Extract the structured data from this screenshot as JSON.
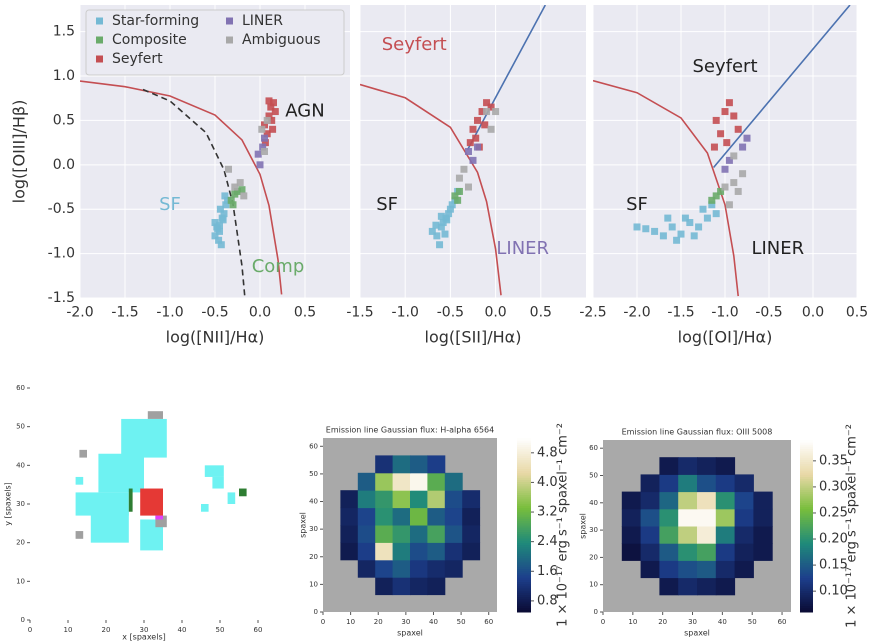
{
  "chart_data": [
    {
      "type": "scatter",
      "xlabel": "log([NII]/Hα)",
      "ylabel": "log([OIII]/Hβ)",
      "xlim": [
        -2.0,
        1.0
      ],
      "ylim": [
        -1.5,
        1.8
      ],
      "grid": true,
      "ytick_labels": true,
      "legend": "upper left",
      "legend_columns": 2,
      "xticks": [
        {
          "value": -2,
          "label": "-2.0"
        },
        -1.5,
        {
          "value": -1,
          "label": "-1.0"
        },
        -0.5,
        {
          "value": 0,
          "label": "0.0"
        },
        0.5
      ],
      "yticks": [
        -1.5,
        {
          "value": -1,
          "label": "-1.0"
        },
        -0.5,
        {
          "value": 0,
          "label": "0.0"
        },
        0.5,
        {
          "value": 1,
          "label": "1.0"
        },
        1.5
      ],
      "lines": [
        {
          "color": "#c44e52",
          "style": "solid",
          "x": [
            -2.0,
            -1.5,
            -1.0,
            -0.5,
            -0.2,
            0.0,
            0.1,
            0.2,
            0.24
          ],
          "y": [
            0.943,
            0.88,
            0.775,
            0.561,
            0.28,
            -0.108,
            -0.459,
            -1.069,
            -1.46
          ]
        },
        {
          "color": "#333333",
          "style": "dashed",
          "x": [
            -1.3,
            -1.0,
            -0.6,
            -0.4,
            -0.3,
            -0.2,
            -0.17
          ],
          "y": [
            0.848,
            0.719,
            0.362,
            -0.056,
            -0.443,
            -1.14,
            -1.473
          ]
        }
      ],
      "series": [
        {
          "name": "Star-forming",
          "color": "#74b9d4",
          "x": [
            -0.5,
            -0.48,
            -0.45,
            -0.42,
            -0.4,
            -0.46,
            -0.5,
            -0.43,
            -0.38,
            -0.44,
            -0.47,
            -0.41,
            -0.39,
            -0.36,
            -0.45
          ],
          "y": [
            -0.8,
            -0.7,
            -0.75,
            -0.6,
            -0.55,
            -0.85,
            -0.65,
            -0.9,
            -0.45,
            -0.5,
            -0.72,
            -0.62,
            -0.35,
            -0.4,
            -0.68
          ]
        },
        {
          "name": "Composite",
          "color": "#6aab6a",
          "x": [
            -0.32,
            -0.28,
            -0.25,
            -0.2,
            -0.3
          ],
          "y": [
            -0.4,
            -0.33,
            -0.3,
            -0.28,
            -0.45
          ]
        },
        {
          "name": "Seyfert",
          "color": "#c44e52",
          "x": [
            0.05,
            0.1,
            0.12,
            0.15,
            0.08,
            0.13,
            0.17,
            0.1,
            0.06,
            0.14
          ],
          "y": [
            0.45,
            0.55,
            0.65,
            0.7,
            0.35,
            0.5,
            0.6,
            0.72,
            0.25,
            0.4
          ]
        },
        {
          "name": "LINER",
          "color": "#8172b2",
          "x": [
            0.0,
            -0.02,
            0.03,
            0.05
          ],
          "y": [
            0.0,
            0.12,
            0.2,
            0.3
          ]
        },
        {
          "name": "Ambiguous",
          "color": "#a8a8a8",
          "x": [
            -0.35,
            -0.22,
            -0.18,
            0.02,
            0.08,
            -0.28,
            0.05
          ],
          "y": [
            -0.05,
            -0.2,
            -0.35,
            0.4,
            0.5,
            -0.25,
            0.15
          ]
        }
      ],
      "annotations": [
        {
          "text": "AGN",
          "x": 0.5,
          "y": 0.6,
          "color": "#222222"
        },
        {
          "text": "SF",
          "x": -1.0,
          "y": -0.45,
          "color": "#74b9d4"
        },
        {
          "text": "Comp",
          "x": 0.2,
          "y": -1.15,
          "color": "#6aab6a"
        }
      ]
    },
    {
      "type": "scatter",
      "xlabel": "log([SII]/Hα)",
      "xlim": [
        -1.5,
        1.0
      ],
      "ylim": [
        -1.5,
        1.8
      ],
      "grid": true,
      "ytick_labels": false,
      "xticks": [
        -1.5,
        {
          "value": -1,
          "label": "-1.0"
        },
        -0.5,
        {
          "value": 0,
          "label": "0.0"
        },
        0.5
      ],
      "yticks": [
        -1.5,
        -1,
        -0.5,
        0,
        0.5,
        1,
        1.5
      ],
      "lines": [
        {
          "color": "#c44e52",
          "style": "solid",
          "x": [
            -1.5,
            -1.0,
            -0.5,
            -0.2,
            -0.1,
            0.0,
            0.06
          ],
          "y": [
            0.904,
            0.755,
            0.422,
            -0.085,
            -0.414,
            -0.95,
            -1.469
          ]
        },
        {
          "color": "#4c72b0",
          "style": "solid",
          "x": [
            -0.31,
            0.55
          ],
          "y": [
            0.17,
            1.8
          ]
        }
      ],
      "series": [
        {
          "name": "Star-forming",
          "color": "#74b9d4",
          "x": [
            -0.65,
            -0.6,
            -0.55,
            -0.7,
            -0.5,
            -0.62,
            -0.58,
            -0.52,
            -0.45,
            -0.66,
            -0.56,
            -0.48,
            -0.6,
            -0.42,
            -0.54
          ],
          "y": [
            -0.8,
            -0.7,
            -0.6,
            -0.75,
            -0.5,
            -0.9,
            -0.65,
            -0.55,
            -0.4,
            -0.68,
            -0.78,
            -0.45,
            -0.58,
            -0.3,
            -0.62
          ]
        },
        {
          "name": "Composite",
          "color": "#6aab6a",
          "x": [
            -0.45,
            -0.4,
            -0.42
          ],
          "y": [
            -0.35,
            -0.3,
            -0.4
          ]
        },
        {
          "name": "Seyfert",
          "color": "#c44e52",
          "x": [
            -0.25,
            -0.2,
            -0.15,
            -0.1,
            -0.22,
            -0.12,
            -0.05,
            -0.18,
            -0.28
          ],
          "y": [
            0.4,
            0.5,
            0.6,
            0.7,
            0.3,
            0.45,
            0.65,
            0.2,
            0.25
          ]
        },
        {
          "name": "LINER",
          "color": "#8172b2",
          "x": [
            -0.3,
            -0.25,
            -0.2
          ],
          "y": [
            0.15,
            0.05,
            0.2
          ]
        },
        {
          "name": "Ambiguous",
          "color": "#a8a8a8",
          "x": [
            -0.35,
            -0.1,
            0.0,
            -0.05,
            -0.4,
            -0.3
          ],
          "y": [
            -0.05,
            0.6,
            0.6,
            0.4,
            -0.15,
            -0.25
          ]
        }
      ],
      "annotations": [
        {
          "text": "Seyfert",
          "x": -0.9,
          "y": 1.35,
          "color": "#c44e52"
        },
        {
          "text": "SF",
          "x": -1.2,
          "y": -0.45,
          "color": "#222222"
        },
        {
          "text": "LINER",
          "x": 0.3,
          "y": -0.95,
          "color": "#8172b2"
        }
      ]
    },
    {
      "type": "scatter",
      "xlabel": "log([OI]/Hα)",
      "xlim": [
        -2.5,
        0.5
      ],
      "ylim": [
        -1.5,
        1.8
      ],
      "grid": true,
      "ytick_labels": false,
      "xticks": [
        -2.5,
        {
          "value": -2,
          "label": "-2.0"
        },
        -1.5,
        {
          "value": -1,
          "label": "-1.0"
        },
        -0.5,
        {
          "value": 0,
          "label": "0.0"
        },
        0.5
      ],
      "yticks": [
        -1.5,
        -1,
        -0.5,
        0,
        0.5,
        1,
        1.5
      ],
      "lines": [
        {
          "color": "#c44e52",
          "style": "solid",
          "x": [
            -2.5,
            -2.0,
            -1.5,
            -1.2,
            -1.0,
            -0.9,
            -0.85
          ],
          "y": [
            0.948,
            0.812,
            0.528,
            0.133,
            -0.45,
            -1.025,
            -1.478
          ]
        },
        {
          "color": "#4c72b0",
          "style": "solid",
          "x": [
            -1.13,
            0.42
          ],
          "y": [
            -0.03,
            1.8
          ]
        }
      ],
      "series": [
        {
          "name": "Star-forming",
          "color": "#74b9d4",
          "x": [
            -2.0,
            -1.9,
            -1.8,
            -1.7,
            -1.6,
            -1.5,
            -1.4,
            -1.3,
            -1.2,
            -1.1,
            -1.55,
            -1.45,
            -1.35,
            -1.25,
            -1.65,
            -1.15
          ],
          "y": [
            -0.7,
            -0.72,
            -0.75,
            -0.8,
            -0.7,
            -0.78,
            -0.65,
            -0.7,
            -0.6,
            -0.55,
            -0.85,
            -0.6,
            -0.8,
            -0.5,
            -0.6,
            -0.45
          ]
        },
        {
          "name": "Composite",
          "color": "#6aab6a",
          "x": [
            -1.1,
            -1.05,
            -1.15
          ],
          "y": [
            -0.35,
            -0.3,
            -0.4
          ]
        },
        {
          "name": "Seyfert",
          "color": "#c44e52",
          "x": [
            -1.1,
            -1.0,
            -0.95,
            -0.9,
            -1.05,
            -0.85,
            -0.98,
            -1.12
          ],
          "y": [
            0.5,
            0.6,
            0.7,
            0.55,
            0.35,
            0.4,
            0.25,
            0.2
          ]
        },
        {
          "name": "LINER",
          "color": "#8172b2",
          "x": [
            -0.95,
            -0.8,
            -0.75,
            -1.0
          ],
          "y": [
            0.05,
            0.2,
            0.3,
            -0.05
          ]
        },
        {
          "name": "Ambiguous",
          "color": "#a8a8a8",
          "x": [
            -0.9,
            -0.85,
            -0.95,
            -0.8,
            -1.0,
            -0.9
          ],
          "y": [
            -0.2,
            -0.3,
            -0.45,
            -0.1,
            -0.25,
            0.1
          ]
        }
      ],
      "annotations": [
        {
          "text": "Seyfert",
          "x": -1.0,
          "y": 1.1,
          "color": "#222222"
        },
        {
          "text": "SF",
          "x": -2.0,
          "y": -0.45,
          "color": "#222222"
        },
        {
          "text": "LINER",
          "x": -0.4,
          "y": -0.95,
          "color": "#222222"
        }
      ]
    },
    {
      "type": "category-map",
      "xlabel": "x [spaxels]",
      "ylabel": "y [spaxels]",
      "xlim": [
        0,
        60
      ],
      "ylim": [
        0,
        60
      ],
      "xticks": [
        0,
        10,
        20,
        30,
        40,
        50,
        60
      ],
      "yticks": [
        0,
        10,
        20,
        30,
        40,
        50,
        60
      ],
      "series": [
        {
          "color": "#6ef2f2",
          "blocks": [
            [
              12,
              27,
              14,
              6
            ],
            [
              16,
              20,
              10,
              8
            ],
            [
              18,
              33,
              12,
              10
            ],
            [
              24,
              42,
              12,
              10
            ],
            [
              29,
              18,
              6,
              8
            ],
            [
              48,
              34,
              3,
              3
            ],
            [
              52,
              30,
              2,
              3
            ],
            [
              12,
              35,
              2,
              2
            ],
            [
              45,
              28,
              2,
              2
            ],
            [
              46,
              37,
              5,
              3
            ]
          ]
        },
        {
          "color": "#2e7d32",
          "blocks": [
            [
              26,
              28,
              1,
              6
            ],
            [
              55,
              32,
              2,
              2
            ]
          ]
        },
        {
          "color": "#e53935",
          "blocks": [
            [
              29,
              27,
              6,
              7
            ]
          ]
        },
        {
          "color": "#a0a0a0",
          "blocks": [
            [
              31,
              52,
              4,
              2
            ],
            [
              33,
              24,
              3,
              3
            ],
            [
              13,
              42,
              2,
              2
            ],
            [
              12,
              21,
              2,
              2
            ]
          ]
        },
        {
          "color": "#e040fb",
          "blocks": [
            [
              33,
              26,
              2,
              1
            ]
          ]
        }
      ]
    },
    {
      "type": "heatmap",
      "title": "Emission line Gaussian flux: H-alpha 6564",
      "xlabel": "spaxel",
      "ylabel": "spaxel",
      "colorbar_label": "1 × 10⁻¹⁷ erg s⁻¹ spaxel⁻¹ cm⁻²",
      "background": "#a9a9a9",
      "xlim": [
        0,
        63
      ],
      "ylim": [
        0,
        63
      ],
      "xticks": [
        0,
        10,
        20,
        30,
        40,
        50,
        60
      ],
      "yticks": [
        0,
        10,
        20,
        30,
        40,
        50,
        60
      ],
      "vlim": [
        0.5,
        5.2
      ],
      "cticks": [
        0.8,
        1.6,
        2.4,
        3.2,
        {
          "value": 4,
          "label": "4.0"
        },
        4.8
      ],
      "colormap": [
        "#0a0a33",
        "#1d3f8c",
        "#1f8a7a",
        "#78be3c",
        "#e8d8a6",
        "#ffffff"
      ],
      "z": [
        [
          null,
          null,
          null,
          null,
          null,
          null,
          null,
          null,
          null,
          null
        ],
        [
          null,
          null,
          null,
          0.9,
          1.2,
          1.0,
          0.9,
          null,
          null,
          null
        ],
        [
          null,
          null,
          1.0,
          1.5,
          1.8,
          1.3,
          1.1,
          1.0,
          null,
          null
        ],
        [
          null,
          0.8,
          1.4,
          4.5,
          2.2,
          1.6,
          1.8,
          1.2,
          0.9,
          null
        ],
        [
          null,
          0.9,
          1.6,
          3.0,
          2.6,
          2.0,
          2.8,
          1.7,
          1.0,
          null
        ],
        [
          null,
          1.0,
          1.5,
          2.5,
          2.0,
          3.2,
          1.8,
          1.5,
          0.9,
          null
        ],
        [
          null,
          0.9,
          2.2,
          2.6,
          3.5,
          2.4,
          3.8,
          1.6,
          1.1,
          null
        ],
        [
          null,
          null,
          1.8,
          3.6,
          4.6,
          5.0,
          3.0,
          2.0,
          null,
          null
        ],
        [
          null,
          null,
          null,
          1.2,
          2.0,
          1.8,
          1.4,
          null,
          null,
          null
        ],
        [
          null,
          null,
          null,
          null,
          null,
          null,
          null,
          null,
          null,
          null
        ]
      ]
    },
    {
      "type": "heatmap",
      "title": "Emission line Gaussian flux: OIII 5008",
      "xlabel": "spaxel",
      "ylabel": "spaxel",
      "colorbar_label": "1 × 10⁻¹⁷ erg s⁻¹ spaxel⁻¹ cm⁻²",
      "background": "#a9a9a9",
      "xlim": [
        0,
        63
      ],
      "ylim": [
        0,
        63
      ],
      "xticks": [
        0,
        10,
        20,
        30,
        40,
        50,
        60
      ],
      "yticks": [
        0,
        10,
        20,
        30,
        40,
        50,
        60
      ],
      "vlim": [
        0.06,
        0.39
      ],
      "cticks": [
        {
          "value": 0.1,
          "label": "0.10"
        },
        0.15,
        {
          "value": 0.2,
          "label": "0.20"
        },
        0.25,
        {
          "value": 0.3,
          "label": "0.30"
        },
        0.35
      ],
      "colormap": [
        "#0a0a33",
        "#1d3f8c",
        "#1f8a7a",
        "#78be3c",
        "#e8d8a6",
        "#ffffff"
      ],
      "z": [
        [
          null,
          null,
          null,
          null,
          null,
          null,
          null,
          null,
          null,
          null
        ],
        [
          null,
          null,
          null,
          0.08,
          0.1,
          0.09,
          0.08,
          null,
          null,
          null
        ],
        [
          null,
          null,
          0.08,
          0.12,
          0.14,
          0.15,
          0.1,
          0.08,
          null,
          null
        ],
        [
          null,
          0.07,
          0.1,
          0.15,
          0.2,
          0.22,
          0.12,
          0.09,
          0.08,
          null
        ],
        [
          null,
          0.08,
          0.12,
          0.22,
          0.3,
          0.36,
          0.18,
          0.1,
          0.08,
          null
        ],
        [
          null,
          0.09,
          0.14,
          0.2,
          0.38,
          0.38,
          0.28,
          0.12,
          0.09,
          null
        ],
        [
          null,
          0.08,
          0.1,
          0.16,
          0.3,
          0.34,
          0.2,
          0.13,
          0.09,
          null
        ],
        [
          null,
          null,
          0.09,
          0.12,
          0.18,
          0.14,
          0.12,
          0.1,
          null,
          null
        ],
        [
          null,
          null,
          null,
          0.08,
          0.1,
          0.09,
          0.08,
          null,
          null,
          null
        ],
        [
          null,
          null,
          null,
          null,
          null,
          null,
          null,
          null,
          null,
          null
        ]
      ]
    }
  ]
}
